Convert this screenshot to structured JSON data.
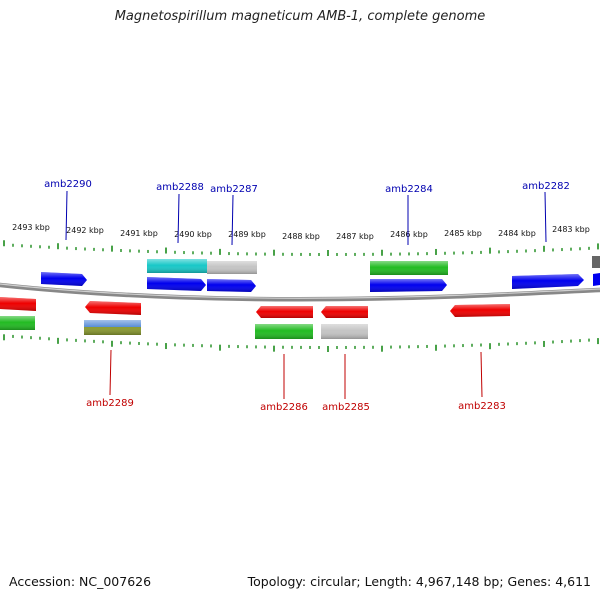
{
  "title": "Magnetospirillum magneticum AMB-1, complete genome",
  "accession": "Accession: NC_007626",
  "summary": "Topology: circular; Length: 4,967,148 bp; Genes: 4,611",
  "colors": {
    "backbone": "#888888",
    "ticks": "#1a8a1a",
    "forward_label": "#0000b0",
    "reverse_label": "#c00000",
    "blue": "#0000ee",
    "red": "#ee0000",
    "green": "#22bb22",
    "cyan": "#18c8c8",
    "gray": "#bfbfbf",
    "darkgray": "#666666",
    "steelblue": "#5b8fd8",
    "olive": "#8a9a30"
  },
  "scale_labels": [
    "2493 kbp",
    "2492 kbp",
    "2491 kbp",
    "2490 kbp",
    "2489 kbp",
    "2488 kbp",
    "2487 kbp",
    "2486 kbp",
    "2485 kbp",
    "2484 kbp",
    "2483 kbp"
  ],
  "forward_labels": [
    "amb2290",
    "amb2288",
    "amb2287",
    "amb2284",
    "amb2282"
  ],
  "reverse_labels": [
    "amb2289",
    "amb2286",
    "amb2285",
    "amb2283"
  ]
}
